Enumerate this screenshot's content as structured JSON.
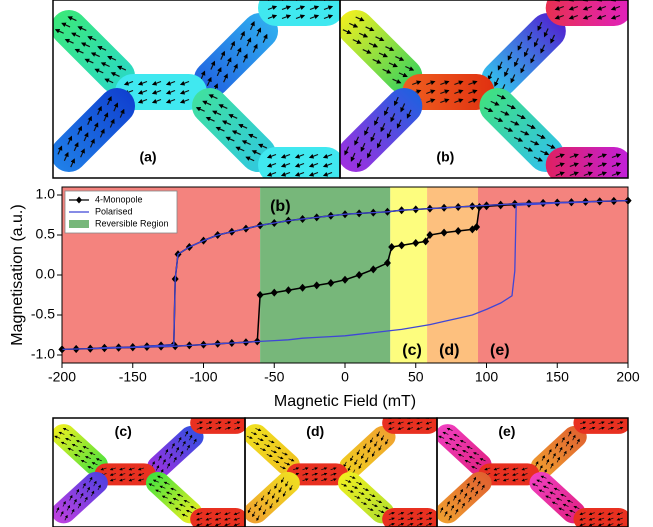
{
  "panels": [
    "(a)",
    "(b)",
    "(c)",
    "(d)",
    "(e)"
  ],
  "chart_data": {
    "type": "line",
    "xlabel": "Magnetic Field (mT)",
    "ylabel": "Magnetisation (a.u.)",
    "xlim": [
      -200,
      200
    ],
    "xticks": [
      -200,
      -150,
      -100,
      -50,
      0,
      50,
      100,
      150,
      200
    ],
    "ylim": [
      -1.1,
      1.1
    ],
    "yticks": [
      {
        "value": -1,
        "label": "-1.0"
      },
      {
        "value": -0.5,
        "label": "-0.5"
      },
      {
        "value": 0,
        "label": "0.0"
      },
      0.5,
      {
        "value": 1,
        "label": "1.0"
      }
    ],
    "legend": "upper left",
    "regions": [
      {
        "from": -200,
        "to": -60,
        "color": "#f4837e",
        "label": "(a)"
      },
      {
        "from": -60,
        "to": 32,
        "color": "#77b77a",
        "label": "(b)",
        "name": "Reversible Region"
      },
      {
        "from": 32,
        "to": 58,
        "color": "#fdfd7e",
        "label": "(c)"
      },
      {
        "from": 58,
        "to": 94,
        "color": "#fdc07e",
        "label": "(d)"
      },
      {
        "from": 94,
        "to": 200,
        "color": "#f4837e",
        "label": "(e)"
      }
    ],
    "series": [
      {
        "name": "4-Monopole",
        "color": "#000000",
        "marker": "diamond",
        "x": [
          200,
          190,
          180,
          170,
          160,
          150,
          140,
          130,
          120,
          110,
          100,
          90,
          80,
          70,
          60,
          50,
          40,
          30,
          20,
          10,
          0,
          -10,
          -20,
          -30,
          -40,
          -50,
          -60,
          -70,
          -80,
          -90,
          -100,
          -110,
          -118,
          -120,
          -121,
          -130,
          -140,
          -150,
          -160,
          -170,
          -180,
          -190,
          -200,
          null,
          -200,
          -190,
          -180,
          -170,
          -160,
          -150,
          -140,
          -130,
          -120,
          -110,
          -100,
          -90,
          -80,
          -70,
          -62,
          -60,
          -50,
          -40,
          -30,
          -20,
          -10,
          0,
          10,
          20,
          30,
          33,
          40,
          50,
          57,
          60,
          70,
          80,
          90,
          93,
          95,
          100,
          110,
          120,
          130,
          140,
          150,
          160,
          170,
          180,
          190,
          200
        ],
        "values": [
          0.93,
          0.925,
          0.92,
          0.915,
          0.91,
          0.905,
          0.9,
          0.895,
          0.89,
          0.88,
          0.87,
          0.86,
          0.85,
          0.84,
          0.83,
          0.82,
          0.81,
          0.79,
          0.78,
          0.77,
          0.76,
          0.74,
          0.72,
          0.7,
          0.68,
          0.65,
          0.62,
          0.58,
          0.54,
          0.5,
          0.43,
          0.35,
          0.26,
          -0.05,
          -0.87,
          -0.88,
          -0.89,
          -0.9,
          -0.905,
          -0.91,
          -0.92,
          -0.925,
          -0.93,
          null,
          -0.93,
          -0.925,
          -0.92,
          -0.915,
          -0.91,
          -0.905,
          -0.9,
          -0.895,
          -0.89,
          -0.88,
          -0.87,
          -0.86,
          -0.85,
          -0.84,
          -0.83,
          -0.25,
          -0.22,
          -0.19,
          -0.16,
          -0.13,
          -0.1,
          -0.06,
          0.0,
          0.07,
          0.15,
          0.35,
          0.37,
          0.4,
          0.42,
          0.5,
          0.53,
          0.55,
          0.57,
          0.6,
          0.85,
          0.86,
          0.87,
          0.88,
          0.89,
          0.9,
          0.905,
          0.91,
          0.915,
          0.92,
          0.925,
          0.93
        ]
      },
      {
        "name": "Polarised",
        "color": "#3f46d6",
        "x": [
          200,
          190,
          180,
          170,
          160,
          150,
          140,
          130,
          120,
          110,
          100,
          90,
          80,
          70,
          60,
          50,
          40,
          30,
          20,
          10,
          0,
          -10,
          -20,
          -30,
          -40,
          -50,
          -60,
          -70,
          -80,
          -90,
          -100,
          -110,
          -118,
          -120,
          -121,
          -130,
          -140,
          -150,
          -160,
          -170,
          -180,
          -190,
          -200,
          null,
          -200,
          -190,
          -180,
          -170,
          -160,
          -150,
          -140,
          -130,
          -120,
          -110,
          -100,
          -90,
          -80,
          -70,
          -60,
          -50,
          -40,
          -30,
          -20,
          -10,
          0,
          10,
          20,
          30,
          40,
          50,
          60,
          70,
          80,
          90,
          100,
          110,
          118,
          120,
          121,
          130,
          140,
          150,
          160,
          170,
          180,
          190,
          200
        ],
        "values": [
          0.93,
          0.925,
          0.92,
          0.915,
          0.91,
          0.905,
          0.9,
          0.895,
          0.89,
          0.88,
          0.87,
          0.86,
          0.85,
          0.84,
          0.83,
          0.82,
          0.81,
          0.79,
          0.78,
          0.77,
          0.76,
          0.74,
          0.72,
          0.7,
          0.68,
          0.65,
          0.62,
          0.58,
          0.54,
          0.5,
          0.43,
          0.35,
          0.26,
          -0.05,
          -0.87,
          -0.88,
          -0.89,
          -0.9,
          -0.905,
          -0.91,
          -0.92,
          -0.925,
          -0.93,
          null,
          -0.93,
          -0.925,
          -0.92,
          -0.915,
          -0.91,
          -0.905,
          -0.9,
          -0.895,
          -0.89,
          -0.88,
          -0.87,
          -0.86,
          -0.85,
          -0.84,
          -0.83,
          -0.82,
          -0.81,
          -0.79,
          -0.78,
          -0.77,
          -0.76,
          -0.74,
          -0.72,
          -0.7,
          -0.68,
          -0.65,
          -0.62,
          -0.58,
          -0.54,
          -0.5,
          -0.43,
          -0.35,
          -0.26,
          0.05,
          0.87,
          0.88,
          0.89,
          0.9,
          0.905,
          0.91,
          0.92,
          0.925,
          0.93
        ]
      }
    ]
  }
}
